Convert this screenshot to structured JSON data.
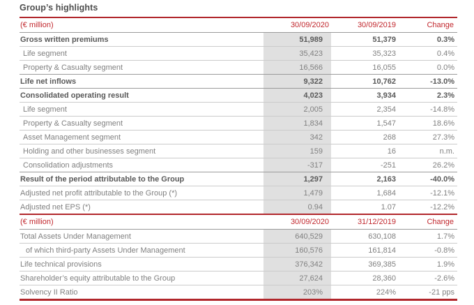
{
  "title": "Group’s highlights",
  "colors": {
    "accent_rule": "#b1262b",
    "header_text": "#c1272d",
    "shaded_column": "#e0e0e0",
    "bold_text": "#595959",
    "regular_text": "#808080"
  },
  "section1": {
    "header": {
      "unit": "(€ million)",
      "col_current": "30/09/2020",
      "col_prior": "30/09/2019",
      "col_change": "Change"
    },
    "rows": [
      {
        "label": "Gross written premiums",
        "current": "51,989",
        "prior": "51,379",
        "change": "0.3%",
        "bold": true
      },
      {
        "label": "Life segment",
        "current": "35,423",
        "prior": "35,323",
        "change": "0.4%",
        "indent": 1
      },
      {
        "label": "Property & Casualty segment",
        "current": "16,566",
        "prior": "16,055",
        "change": "0.0%",
        "indent": 1
      },
      {
        "label": "Life net inflows",
        "current": "9,322",
        "prior": "10,762",
        "change": "-13.0%",
        "bold": true
      },
      {
        "label": "Consolidated operating result",
        "current": "4,023",
        "prior": "3,934",
        "change": "2.3%",
        "bold": true
      },
      {
        "label": "Life segment",
        "current": "2,005",
        "prior": "2,354",
        "change": "-14.8%",
        "indent": 1
      },
      {
        "label": "Property & Casualty segment",
        "current": "1,834",
        "prior": "1,547",
        "change": "18.6%",
        "indent": 1
      },
      {
        "label": "Asset Management segment",
        "current": "342",
        "prior": "268",
        "change": "27.3%",
        "indent": 1
      },
      {
        "label": "Holding and other businesses segment",
        "current": "159",
        "prior": "16",
        "change": "n.m.",
        "indent": 1
      },
      {
        "label": "Consolidation adjustments",
        "current": "-317",
        "prior": "-251",
        "change": "26.2%",
        "indent": 1
      },
      {
        "label": "Result of the period attributable to the Group",
        "current": "1,297",
        "prior": "2,163",
        "change": "-40.0%",
        "bold": true
      },
      {
        "label": "Adjusted net profit attributable to the Group (*)",
        "current": "1,479",
        "prior": "1,684",
        "change": "-12.1%"
      },
      {
        "label": "Adjusted net EPS (*)",
        "current": "0.94",
        "prior": "1.07",
        "change": "-12.2%"
      }
    ]
  },
  "section2": {
    "header": {
      "unit": "(€ million)",
      "col_current": "30/09/2020",
      "col_prior": "31/12/2019",
      "col_change": "Change"
    },
    "rows": [
      {
        "label": "Total Assets Under Management",
        "current": "640,529",
        "prior": "630,108",
        "change": "1.7%"
      },
      {
        "label": "of which third-party Assets Under Management",
        "current": "160,576",
        "prior": "161,814",
        "change": "-0.8%",
        "indent": 2
      },
      {
        "label": "Life technical provisions",
        "current": "376,342",
        "prior": "369,385",
        "change": "1.9%"
      },
      {
        "label": "Shareholder’s equity attributable to the Group",
        "current": "27,624",
        "prior": "28,360",
        "change": "-2.6%"
      },
      {
        "label": "Solvency II Ratio",
        "current": "203%",
        "prior": "224%",
        "change": "-21 pps"
      }
    ]
  }
}
